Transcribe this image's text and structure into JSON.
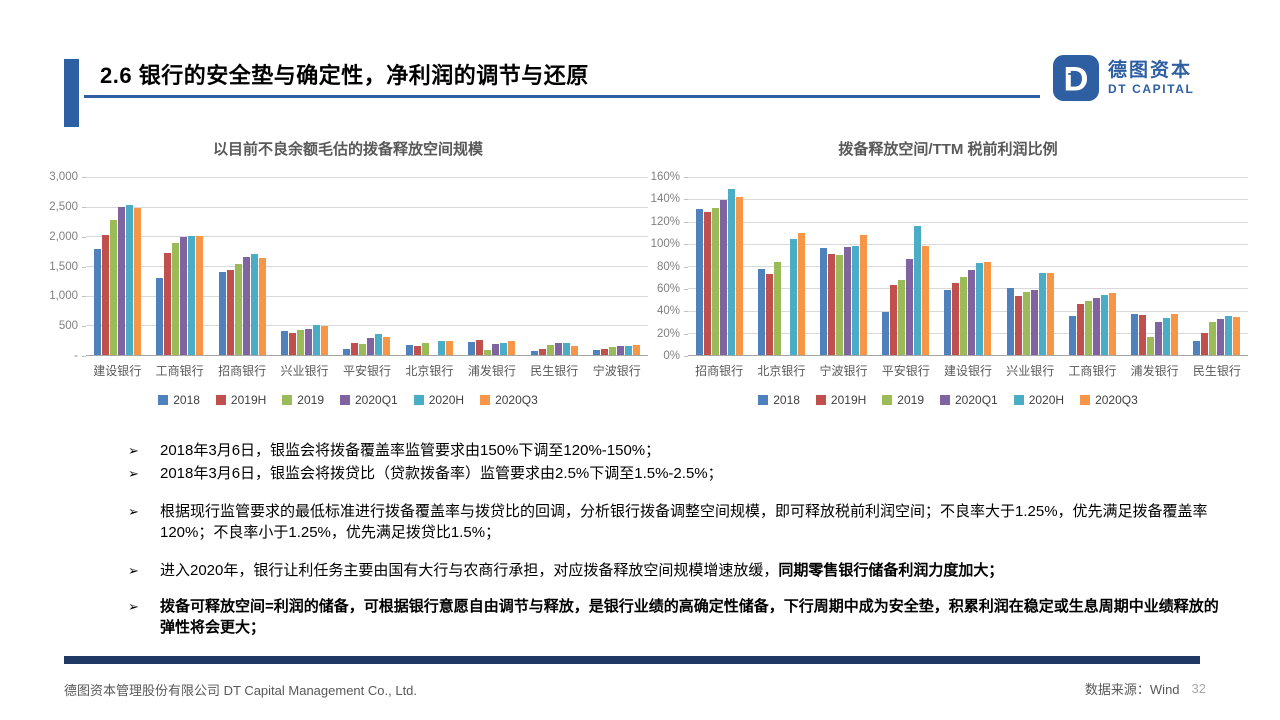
{
  "header": {
    "title": "2.6 银行的安全垫与确定性，净利润的调节与还原",
    "logo": {
      "mark": "DT",
      "name_cn": "德图资本",
      "name_en": "DT CAPITAL",
      "brand_color": "#2E5FA3"
    }
  },
  "chart_data": [
    {
      "type": "bar",
      "title": "以目前不良余额毛估的拨备释放空间规模",
      "categories": [
        "建设银行",
        "工商银行",
        "招商银行",
        "兴业银行",
        "平安银行",
        "北京银行",
        "浦发银行",
        "民生银行",
        "宁波银行"
      ],
      "series": [
        {
          "name": "2018",
          "color": "#4F81BD",
          "values": [
            1780,
            1300,
            1400,
            400,
            100,
            170,
            225,
            60,
            85
          ]
        },
        {
          "name": "2019H",
          "color": "#C0504D",
          "values": [
            2030,
            1720,
            1430,
            370,
            210,
            160,
            255,
            100,
            100
          ]
        },
        {
          "name": "2019",
          "color": "#9BBB59",
          "values": [
            2280,
            1880,
            1540,
            420,
            190,
            200,
            90,
            170,
            130
          ]
        },
        {
          "name": "2020Q1",
          "color": "#8064A2",
          "values": [
            2500,
            1990,
            1660,
            440,
            290,
            0,
            190,
            195,
            155
          ]
        },
        {
          "name": "2020H",
          "color": "#4BACC6",
          "values": [
            2530,
            2000,
            1710,
            500,
            360,
            240,
            200,
            195,
            145
          ]
        },
        {
          "name": "2020Q3",
          "color": "#F79646",
          "values": [
            2480,
            2000,
            1630,
            495,
            300,
            240,
            240,
            145,
            165
          ]
        }
      ],
      "ylim": [
        0,
        3000
      ],
      "yticks": [
        "3,000",
        "2,500",
        "2,000",
        "1,500",
        "1,000",
        "500",
        "-"
      ],
      "grid": true,
      "legend_position": "bottom"
    },
    {
      "type": "bar",
      "title": "拨备释放空间/TTM 税前利润比例",
      "categories": [
        "招商银行",
        "北京银行",
        "宁波银行",
        "平安银行",
        "建设银行",
        "兴业银行",
        "工商银行",
        "浦发银行",
        "民生银行"
      ],
      "series": [
        {
          "name": "2018",
          "color": "#4F81BD",
          "values": [
            131,
            77,
            96,
            39,
            58,
            60,
            35,
            37,
            13
          ]
        },
        {
          "name": "2019H",
          "color": "#C0504D",
          "values": [
            129,
            73,
            91,
            63,
            65,
            53,
            46,
            36,
            20
          ]
        },
        {
          "name": "2019",
          "color": "#9BBB59",
          "values": [
            132,
            84,
            90,
            67,
            70,
            57,
            49,
            16,
            30
          ]
        },
        {
          "name": "2020Q1",
          "color": "#8064A2",
          "values": [
            139,
            0,
            97,
            86,
            76,
            58,
            51,
            30,
            32
          ]
        },
        {
          "name": "2020H",
          "color": "#4BACC6",
          "values": [
            149,
            104,
            98,
            116,
            83,
            74,
            54,
            33,
            35
          ]
        },
        {
          "name": "2020Q3",
          "color": "#F79646",
          "values": [
            142,
            110,
            108,
            98,
            84,
            74,
            56,
            37,
            34
          ]
        }
      ],
      "ylim": [
        0,
        160
      ],
      "yticks": [
        "160%",
        "140%",
        "120%",
        "100%",
        "80%",
        "60%",
        "40%",
        "20%",
        "0%"
      ],
      "grid": true,
      "legend_position": "bottom"
    }
  ],
  "bullets": [
    {
      "marker": "➢",
      "gap": "none",
      "parts": [
        {
          "text": "2018年3月6日，银监会将拨备覆盖率监管要求由150%下调至120%-150%；",
          "bold": false
        }
      ]
    },
    {
      "marker": "➢",
      "gap": "none",
      "parts": [
        {
          "text": "2018年3月6日，银监会将拨贷比（贷款拨备率）监管要求由2.5%下调至1.5%-2.5%；",
          "bold": false
        }
      ]
    },
    {
      "marker": "➢",
      "gap": "md",
      "parts": [
        {
          "text": "根据现行监管要求的最低标准进行拨备覆盖率与拨贷比的回调，分析银行拨备调整空间规模，即可释放税前利润空间；不良率大于1.25%，优先满足拨备覆盖率120%；不良率小于1.25%，优先满足拨贷比1.5%；",
          "bold": false
        }
      ]
    },
    {
      "marker": "➢",
      "gap": "md",
      "parts": [
        {
          "text": "进入2020年，银行让利任务主要由国有大行与农商行承担，对应拨备释放空间规模增速放缓，",
          "bold": false
        },
        {
          "text": "同期零售银行储备利润力度加大；",
          "bold": true
        }
      ]
    },
    {
      "marker": "➢",
      "gap": "lg",
      "parts": [
        {
          "text": "拨备可释放空间=利润的储备，可根据银行意愿自由调节与释放，是银行业绩的高确定性储备，下行周期中成为安全垫，积累利润在稳定或生息周期中业绩释放的弹性将会更大；",
          "bold": true
        }
      ]
    }
  ],
  "footer": {
    "company": "德图资本管理股份有限公司  DT Capital Management  Co.,  Ltd.",
    "source": "数据来源：Wind",
    "page": "32"
  }
}
